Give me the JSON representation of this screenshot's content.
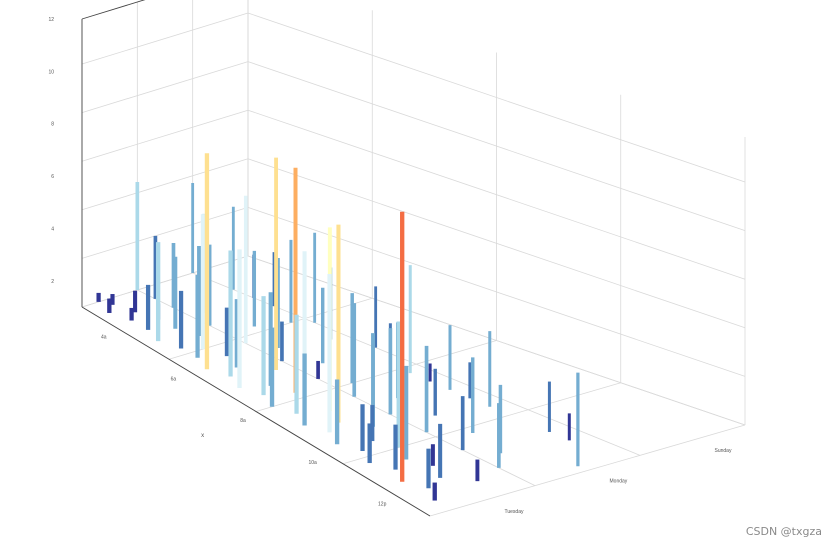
{
  "chart_data": {
    "type": "bar3d",
    "xlabel": "x",
    "y_categories": [
      "Sunday",
      "Monday",
      "Tuesday"
    ],
    "z_ticks": [
      "12",
      "10",
      "8",
      "6",
      "4",
      "2"
    ],
    "x_ticks": [
      "4a",
      "6a",
      "8a",
      "10a",
      "12p"
    ],
    "color_scale": [
      "#313695",
      "#4575b4",
      "#74add1",
      "#abd9e9",
      "#e0f3f8",
      "#ffffbf",
      "#fee090",
      "#fdae61",
      "#f46d43"
    ],
    "grid": true,
    "bars": [
      {
        "x": 0.0,
        "y": 0.3,
        "v": 0.5
      },
      {
        "x": 0.0,
        "y": 1.0,
        "v": 6.0
      },
      {
        "x": 0.0,
        "y": 2.0,
        "v": 5.0
      },
      {
        "x": 0.5,
        "y": 0.4,
        "v": 0.6
      },
      {
        "x": 1.0,
        "y": 0.2,
        "v": 0.8
      },
      {
        "x": 1.0,
        "y": 1.0,
        "v": 3.5
      },
      {
        "x": 1.5,
        "y": 0.5,
        "v": 1.2
      },
      {
        "x": 1.5,
        "y": 1.6,
        "v": 1.8
      },
      {
        "x": 2.0,
        "y": 0.3,
        "v": 0.7
      },
      {
        "x": 2.0,
        "y": 1.0,
        "v": 3.6
      },
      {
        "x": 2.0,
        "y": 2.0,
        "v": 4.6
      },
      {
        "x": 2.5,
        "y": 0.6,
        "v": 0.9
      },
      {
        "x": 3.0,
        "y": 0.3,
        "v": 2.5
      },
      {
        "x": 3.0,
        "y": 1.2,
        "v": 5.5
      },
      {
        "x": 3.0,
        "y": 2.0,
        "v": 2.4
      },
      {
        "x": 3.5,
        "y": 0.6,
        "v": 4.0
      },
      {
        "x": 4.0,
        "y": 0.2,
        "v": 5.5
      },
      {
        "x": 4.0,
        "y": 1.0,
        "v": 4.5
      },
      {
        "x": 4.0,
        "y": 2.0,
        "v": 3.0
      },
      {
        "x": 4.5,
        "y": 0.7,
        "v": 5.0
      },
      {
        "x": 5.0,
        "y": 0.3,
        "v": 3.2
      },
      {
        "x": 5.0,
        "y": 1.4,
        "v": 4.2
      },
      {
        "x": 5.5,
        "y": 0.5,
        "v": 7.5
      },
      {
        "x": 5.5,
        "y": 1.8,
        "v": 4.6
      },
      {
        "x": 6.0,
        "y": 0.3,
        "v": 4.6
      },
      {
        "x": 6.0,
        "y": 1.0,
        "v": 8.2
      },
      {
        "x": 6.0,
        "y": 2.0,
        "v": 5.0
      },
      {
        "x": 6.5,
        "y": 0.6,
        "v": 2.7
      },
      {
        "x": 7.0,
        "y": 0.2,
        "v": 12.0
      },
      {
        "x": 7.0,
        "y": 1.2,
        "v": 5.0
      },
      {
        "x": 7.5,
        "y": 0.5,
        "v": 3.8
      },
      {
        "x": 7.5,
        "y": 1.8,
        "v": 4.0
      },
      {
        "x": 8.0,
        "y": 0.3,
        "v": 7.0
      },
      {
        "x": 8.0,
        "y": 1.0,
        "v": 2.2
      },
      {
        "x": 8.5,
        "y": 0.8,
        "v": 11.8
      },
      {
        "x": 9.0,
        "y": 0.2,
        "v": 7.7
      },
      {
        "x": 9.0,
        "y": 1.3,
        "v": 4.2
      },
      {
        "x": 9.0,
        "y": 2.0,
        "v": 3.4
      },
      {
        "x": 9.5,
        "y": 0.5,
        "v": 5.2
      },
      {
        "x": 10.0,
        "y": 0.3,
        "v": 5.5
      },
      {
        "x": 10.0,
        "y": 1.0,
        "v": 1.0
      },
      {
        "x": 10.5,
        "y": 0.6,
        "v": 12.5
      },
      {
        "x": 10.5,
        "y": 1.8,
        "v": 2.3
      },
      {
        "x": 11.0,
        "y": 0.2,
        "v": 4.4
      },
      {
        "x": 11.0,
        "y": 1.2,
        "v": 5.0
      },
      {
        "x": 11.5,
        "y": 0.5,
        "v": 8.5
      },
      {
        "x": 11.5,
        "y": 1.8,
        "v": 6.0
      },
      {
        "x": 12.0,
        "y": 0.3,
        "v": 5.5
      },
      {
        "x": 12.0,
        "y": 1.0,
        "v": 5.2
      },
      {
        "x": 12.5,
        "y": 0.6,
        "v": 10.2
      },
      {
        "x": 12.5,
        "y": 1.8,
        "v": 1.0
      },
      {
        "x": 13.0,
        "y": 0.2,
        "v": 4.0
      },
      {
        "x": 13.0,
        "y": 1.3,
        "v": 4.2
      },
      {
        "x": 13.5,
        "y": 0.5,
        "v": 11.0
      },
      {
        "x": 13.5,
        "y": 1.8,
        "v": 3.6
      },
      {
        "x": 14.0,
        "y": 0.3,
        "v": 8.8
      },
      {
        "x": 14.0,
        "y": 1.0,
        "v": 4.8
      },
      {
        "x": 14.5,
        "y": 0.7,
        "v": 5.2
      },
      {
        "x": 14.5,
        "y": 1.8,
        "v": 2.0
      },
      {
        "x": 15.0,
        "y": 0.2,
        "v": 3.6
      },
      {
        "x": 15.0,
        "y": 1.3,
        "v": 2.6
      },
      {
        "x": 15.5,
        "y": 0.5,
        "v": 2.0
      },
      {
        "x": 15.5,
        "y": 1.8,
        "v": 4.2
      },
      {
        "x": 16.0,
        "y": 0.3,
        "v": 2.6
      },
      {
        "x": 16.0,
        "y": 1.0,
        "v": 4.8
      },
      {
        "x": 16.5,
        "y": 0.6,
        "v": 7.0
      },
      {
        "x": 17.0,
        "y": 0.2,
        "v": 2.2
      },
      {
        "x": 17.0,
        "y": 1.3,
        "v": 4.2
      },
      {
        "x": 17.5,
        "y": 0.5,
        "v": 5.2
      },
      {
        "x": 18.0,
        "y": 0.3,
        "v": 2.5
      },
      {
        "x": 18.0,
        "y": 1.0,
        "v": 3.0
      },
      {
        "x": 18.5,
        "y": 0.6,
        "v": 1.2
      },
      {
        "x": 18.5,
        "y": 1.8,
        "v": 2.8
      },
      {
        "x": 19.0,
        "y": 0.2,
        "v": 15.0
      },
      {
        "x": 19.0,
        "y": 1.2,
        "v": 3.8
      },
      {
        "x": 19.5,
        "y": 0.5,
        "v": 3.0
      },
      {
        "x": 19.5,
        "y": 1.8,
        "v": 1.5
      },
      {
        "x": 20.0,
        "y": 0.3,
        "v": 2.2
      },
      {
        "x": 20.0,
        "y": 1.0,
        "v": 3.6
      },
      {
        "x": 20.5,
        "y": 0.7,
        "v": 1.2
      },
      {
        "x": 21.0,
        "y": 0.2,
        "v": 1.0
      },
      {
        "x": 21.5,
        "y": 1.5,
        "v": 5.2
      }
    ]
  },
  "watermark": "CSDN @txgza"
}
